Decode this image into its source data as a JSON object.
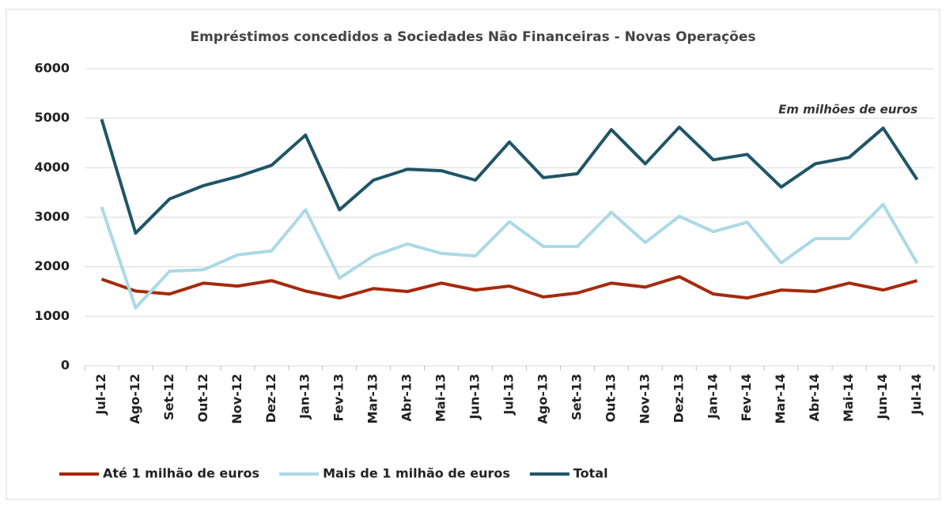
{
  "chart_data": {
    "type": "line",
    "title": "Empréstimos concedidos a Sociedades Não Financeiras - Novas Operações",
    "annotation": "Em milhões de euros",
    "categories": [
      "Jul-12",
      "Ago-12",
      "Set-12",
      "Out-12",
      "Nov-12",
      "Dez-12",
      "Jan-13",
      "Fev-13",
      "Mar-13",
      "Abr-13",
      "Mai-13",
      "Jun-13",
      "Jul-13",
      "Ago-13",
      "Set-13",
      "Out-13",
      "Nov-13",
      "Dez-13",
      "Jan-14",
      "Fev-14",
      "Mar-14",
      "Abr-14",
      "Mai-14",
      "Jun-14",
      "Jul-14"
    ],
    "series": [
      {
        "name": "Até 1 milhão de euros",
        "color": "#a52a0d",
        "values": [
          1750,
          1510,
          1450,
          1670,
          1610,
          1720,
          1510,
          1370,
          1560,
          1500,
          1670,
          1530,
          1610,
          1390,
          1470,
          1670,
          1590,
          1800,
          1450,
          1370,
          1530,
          1500,
          1670,
          1530,
          1720
        ]
      },
      {
        "name": "Mais de 1 milhão de euros",
        "color": "#abd9e6",
        "values": [
          3210,
          1170,
          1910,
          1940,
          2240,
          2320,
          3150,
          1770,
          2220,
          2460,
          2270,
          2220,
          2910,
          2410,
          2410,
          3100,
          2490,
          3020,
          2710,
          2900,
          2080,
          2570,
          2570,
          3260,
          2070
        ]
      },
      {
        "name": "Total",
        "color": "#1f5567",
        "values": [
          4980,
          2680,
          3370,
          3640,
          3820,
          4050,
          4660,
          3150,
          3750,
          3970,
          3940,
          3750,
          4520,
          3800,
          3880,
          4770,
          4080,
          4820,
          4160,
          4270,
          3610,
          4080,
          4210,
          4800,
          3760
        ]
      }
    ],
    "ylim": [
      0,
      6000
    ],
    "yticks": [
      0,
      1000,
      2000,
      3000,
      4000,
      5000,
      6000
    ],
    "grid": true,
    "legend": "bottom-left"
  }
}
